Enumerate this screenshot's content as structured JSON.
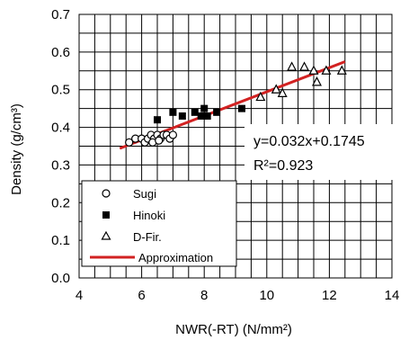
{
  "chart_data": {
    "type": "scatter",
    "xlabel": "NWR(-RT) (N/mm²)",
    "ylabel": "Density (g/cm³)",
    "xlim": [
      4,
      14
    ],
    "ylim": [
      0.0,
      0.7
    ],
    "x_ticks": [
      "4",
      "6",
      "8",
      "10",
      "12",
      "14"
    ],
    "y_ticks": [
      "0.0",
      "0.1",
      "0.2",
      "0.3",
      "0.4",
      "0.5",
      "0.6",
      "0.7"
    ],
    "grid": true,
    "legend_position": "bottom-left",
    "series": [
      {
        "name": "Sugi",
        "marker": "open-circle",
        "points": [
          [
            5.6,
            0.36
          ],
          [
            5.8,
            0.37
          ],
          [
            6.0,
            0.37
          ],
          [
            6.1,
            0.36
          ],
          [
            6.2,
            0.37
          ],
          [
            6.3,
            0.38
          ],
          [
            6.4,
            0.37
          ],
          [
            6.5,
            0.38
          ],
          [
            6.6,
            0.37
          ],
          [
            6.7,
            0.38
          ],
          [
            6.8,
            0.38
          ],
          [
            6.9,
            0.37
          ],
          [
            7.0,
            0.38
          ],
          [
            6.35,
            0.36
          ],
          [
            6.55,
            0.365
          ]
        ]
      },
      {
        "name": "Hinoki",
        "marker": "filled-square",
        "points": [
          [
            6.5,
            0.42
          ],
          [
            7.0,
            0.44
          ],
          [
            7.3,
            0.43
          ],
          [
            7.7,
            0.44
          ],
          [
            7.9,
            0.43
          ],
          [
            8.0,
            0.45
          ],
          [
            8.1,
            0.43
          ],
          [
            8.4,
            0.44
          ],
          [
            9.2,
            0.45
          ]
        ]
      },
      {
        "name": "D-Fir.",
        "marker": "open-triangle",
        "points": [
          [
            9.8,
            0.48
          ],
          [
            10.3,
            0.5
          ],
          [
            10.5,
            0.49
          ],
          [
            10.8,
            0.56
          ],
          [
            11.2,
            0.56
          ],
          [
            11.5,
            0.55
          ],
          [
            11.6,
            0.52
          ],
          [
            11.9,
            0.55
          ],
          [
            12.4,
            0.55
          ]
        ]
      }
    ],
    "regression": {
      "name": "Approximation",
      "slope": 0.032,
      "intercept": 0.1745,
      "x_range": [
        5.3,
        12.5
      ],
      "color": "#d22222"
    },
    "annotations": {
      "equation": "y=0.032x+0.1745",
      "r_squared": "R²=0.923"
    }
  }
}
